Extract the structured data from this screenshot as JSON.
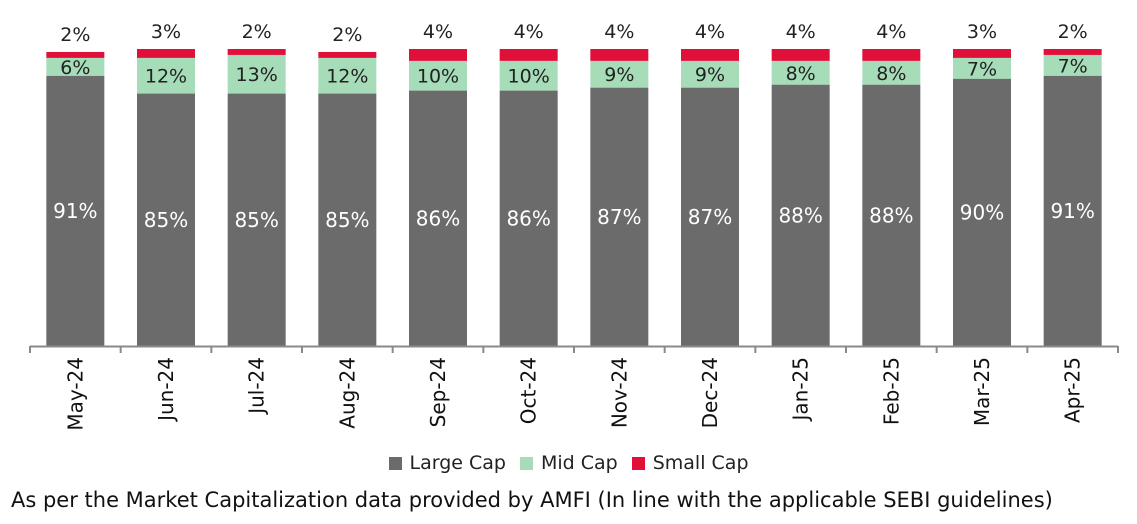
{
  "chart_data": {
    "type": "bar",
    "stacked": true,
    "categories": [
      "May-24",
      "Jun-24",
      "Jul-24",
      "Aug-24",
      "Sep-24",
      "Oct-24",
      "Nov-24",
      "Dec-24",
      "Jan-25",
      "Feb-25",
      "Mar-25",
      "Apr-25"
    ],
    "series": [
      {
        "name": "Large Cap",
        "color": "#6b6b6b",
        "label_color": "#ffffff",
        "values": [
          91,
          85,
          85,
          85,
          86,
          86,
          87,
          87,
          88,
          88,
          90,
          91
        ]
      },
      {
        "name": "Mid Cap",
        "color": "#a6dcb8",
        "label_color": "#222222",
        "values": [
          6,
          12,
          13,
          12,
          10,
          10,
          9,
          9,
          8,
          8,
          7,
          7
        ]
      },
      {
        "name": "Small Cap",
        "color": "#e0103a",
        "label_color": "#222222",
        "values": [
          2,
          3,
          2,
          2,
          4,
          4,
          4,
          4,
          4,
          4,
          3,
          2
        ]
      }
    ],
    "ylim": [
      0,
      100
    ],
    "value_suffix": "%",
    "grid": false,
    "legend_position": "bottom",
    "xlabel": "",
    "ylabel": "",
    "title": ""
  },
  "footnote": "As per the Market Capitalization data provided by AMFI (In line with the applicable SEBI guidelines)"
}
